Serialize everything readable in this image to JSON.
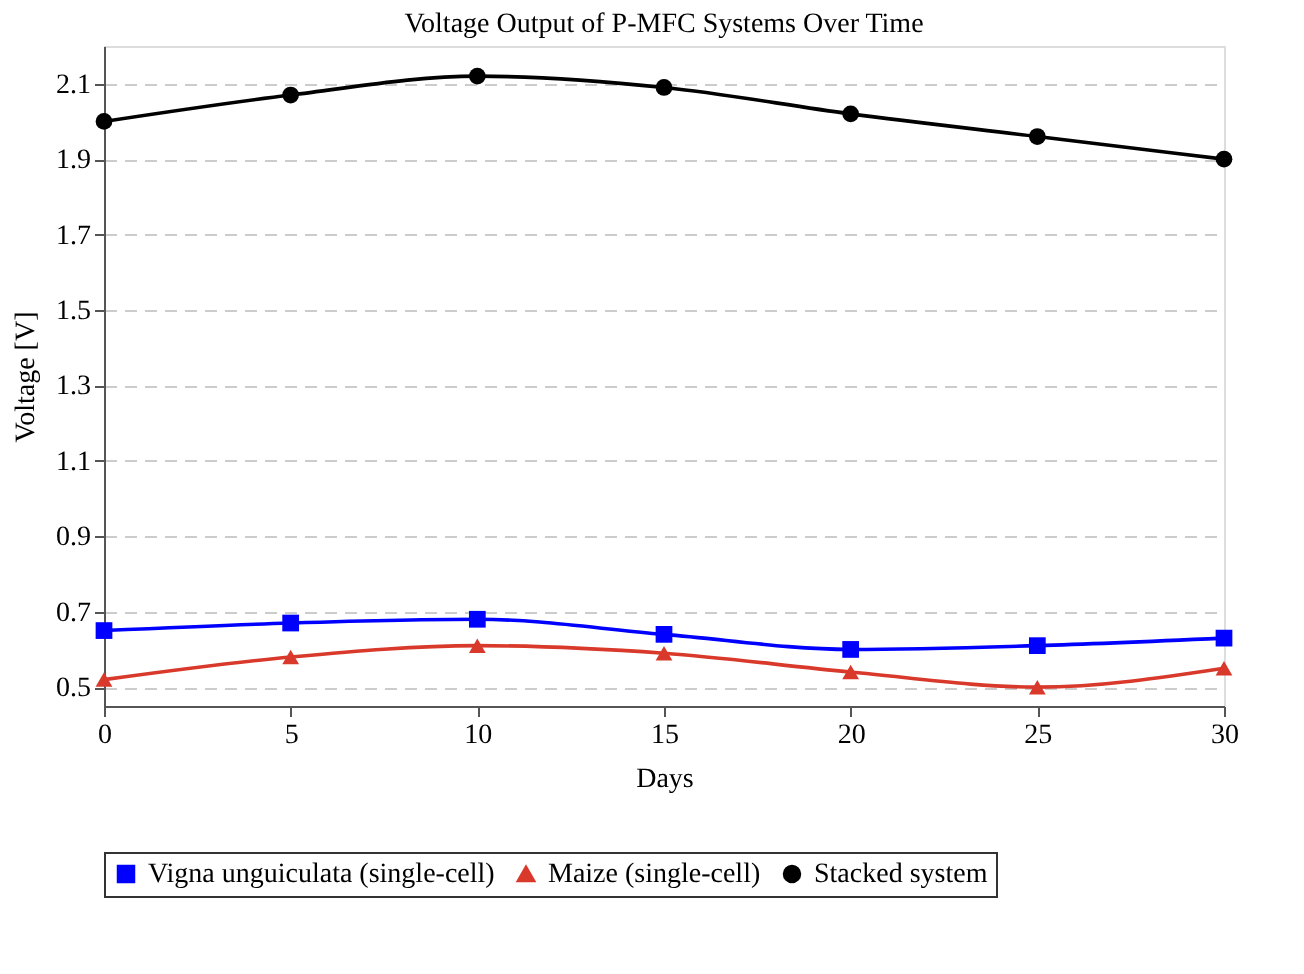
{
  "chart_data": {
    "type": "line",
    "title": "Voltage Output of P-MFC Systems Over Time",
    "xlabel": "Days",
    "ylabel": "Voltage [V]",
    "x": [
      0,
      5,
      10,
      15,
      20,
      25,
      30
    ],
    "series": [
      {
        "name": "Vigna unguiculata (single-cell)",
        "color": "#0000ff",
        "marker": "square",
        "values": [
          0.65,
          0.67,
          0.68,
          0.64,
          0.6,
          0.61,
          0.63
        ]
      },
      {
        "name": "Maize (single-cell)",
        "color": "#d9392b",
        "marker": "triangle",
        "values": [
          0.52,
          0.58,
          0.61,
          0.59,
          0.54,
          0.5,
          0.55
        ]
      },
      {
        "name": "Stacked system",
        "color": "#000000",
        "marker": "circle",
        "values": [
          2.0,
          2.07,
          2.12,
          2.09,
          2.02,
          1.96,
          1.9
        ]
      }
    ],
    "xlim": [
      0,
      30
    ],
    "xticks": [
      0,
      5,
      10,
      15,
      20,
      25,
      30
    ],
    "ylim": [
      0.45,
      2.2
    ],
    "yticks": [
      0.5,
      0.7,
      0.9,
      1.1,
      1.3,
      1.5,
      1.7,
      1.9,
      2.1
    ],
    "grid": "y",
    "legend": "bottom",
    "line_style": "solid"
  }
}
